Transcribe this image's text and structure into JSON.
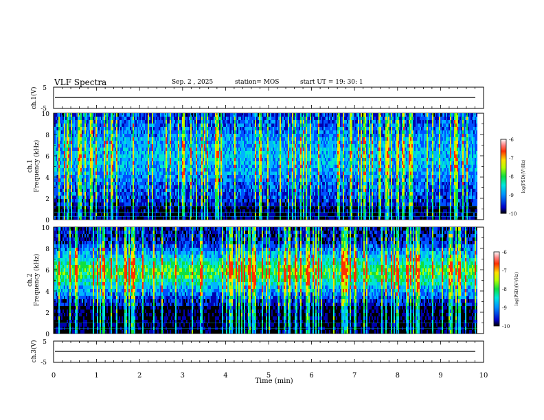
{
  "header": {
    "title": "VLF Spectra",
    "date": "Sep. 2 , 2025",
    "station": "station= MOS",
    "start": "start  UT =   19: 30: 1"
  },
  "chart_data": [
    {
      "type": "line",
      "name": "ch1-waveform",
      "ylabel": "ch.1(V)",
      "ylim": [
        -5,
        5
      ],
      "yticks": [
        "5",
        "-5"
      ],
      "level": 0
    },
    {
      "type": "heatmap",
      "name": "ch1-spectrogram",
      "ylabel_line1": "ch.1",
      "ylabel_line2": "Frequency (kHz)",
      "ylim": [
        0,
        10
      ],
      "yticks": [
        "0",
        "2",
        "4",
        "6",
        "8",
        "10"
      ],
      "xlim": [
        0,
        10
      ],
      "data_end_min": 9.85,
      "colorbar": {
        "label": "log(PSD)(V²/Hz)",
        "range": [
          -10,
          -6
        ],
        "ticks": [
          "-6",
          "-7",
          "-8",
          "-9",
          "-10"
        ]
      }
    },
    {
      "type": "heatmap",
      "name": "ch2-spectrogram",
      "ylabel_line1": "ch.2",
      "ylabel_line2": "Frequency (kHz)",
      "ylim": [
        0,
        10
      ],
      "yticks": [
        "0",
        "2",
        "4",
        "6",
        "8",
        "10"
      ],
      "xlim": [
        0,
        10
      ],
      "data_end_min": 9.85,
      "colorbar": {
        "label": "log(PSD)(V²/Hz)",
        "range": [
          -10,
          -6
        ],
        "ticks": [
          "-6",
          "-7",
          "-8",
          "-9",
          "-10"
        ]
      }
    },
    {
      "type": "line",
      "name": "ch3-waveform",
      "ylabel": "ch.3(V)",
      "ylim": [
        -5,
        5
      ],
      "yticks": [
        "5",
        "-5"
      ],
      "level": 0
    }
  ],
  "xaxis": {
    "label": "Time (min)",
    "ticks": [
      "0",
      "1",
      "2",
      "3",
      "4",
      "5",
      "6",
      "7",
      "8",
      "9",
      "10"
    ]
  },
  "colors": {
    "background": "#000000",
    "frame": "#000000"
  }
}
